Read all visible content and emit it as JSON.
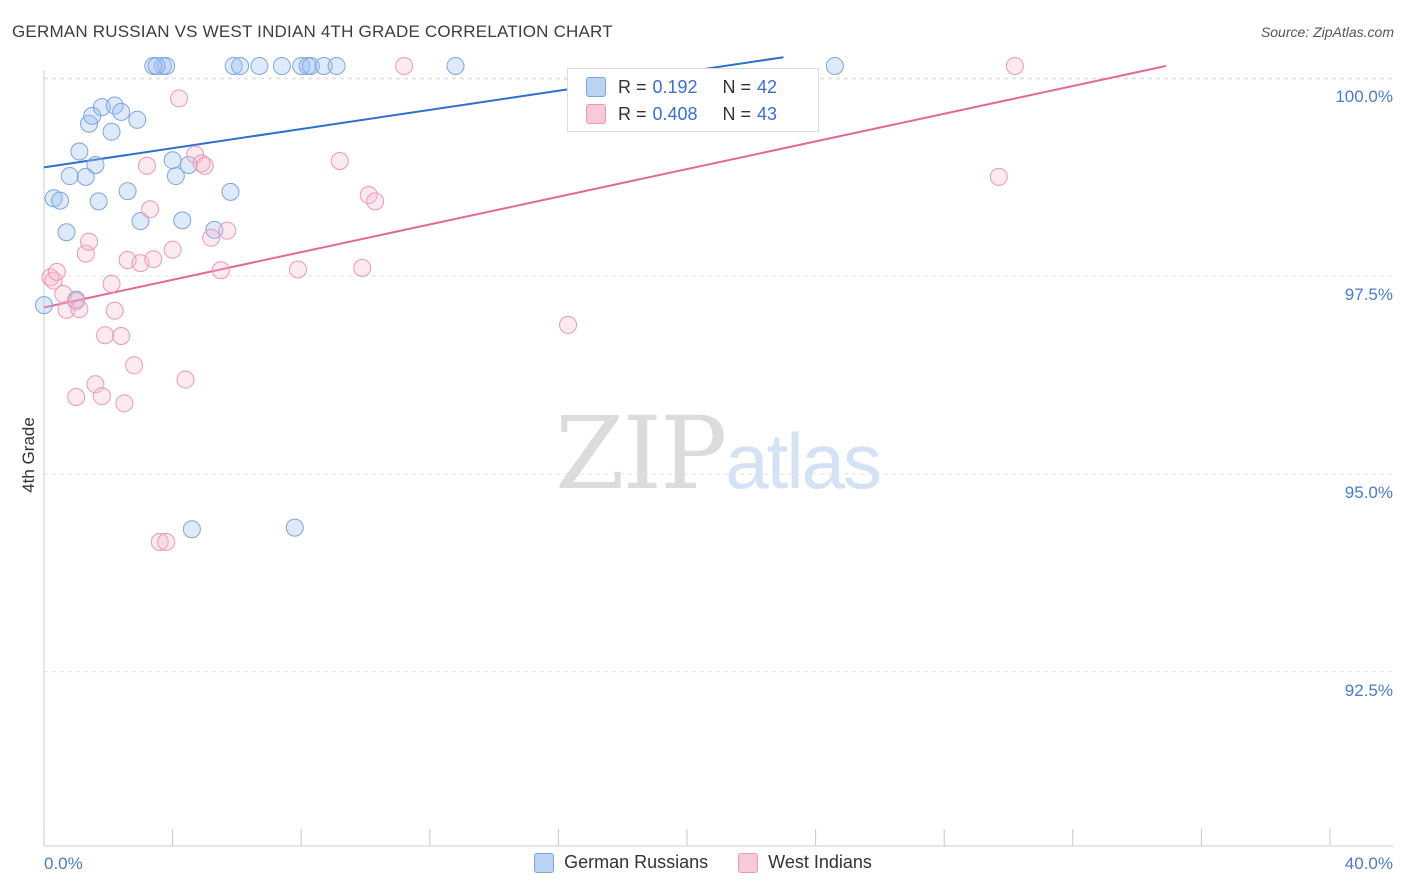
{
  "title": "GERMAN RUSSIAN VS WEST INDIAN 4TH GRADE CORRELATION CHART",
  "source": "Source: ZipAtlas.com",
  "watermark": {
    "zip": "ZIP",
    "atlas": "atlas"
  },
  "legend": {
    "r_label": "R =",
    "n_label": "N =",
    "rows": [
      {
        "r": "0.192",
        "n": "42"
      },
      {
        "r": "0.408",
        "n": "43"
      }
    ]
  },
  "bottom_legend": [
    "German Russians",
    "West Indians"
  ],
  "chart_data": {
    "type": "scatter",
    "title": "GERMAN RUSSIAN VS WEST INDIAN 4TH GRADE CORRELATION CHART",
    "xlabel": "",
    "ylabel": "4th Grade",
    "xlim": [
      0,
      40
    ],
    "ylim": [
      90.3,
      100.2
    ],
    "x_tick_labels": [
      "0.0%",
      "40.0%"
    ],
    "y_ticks": [
      100.0,
      97.5,
      95.0,
      92.5
    ],
    "y_tick_labels": [
      "100.0%",
      "97.5%",
      "95.0%",
      "92.5%"
    ],
    "colors": {
      "German Russians": "#6f9fe0",
      "West Indians": "#ef8fb0"
    },
    "series": [
      {
        "name": "German Russians",
        "r": 0.192,
        "n": 42,
        "trend": {
          "x": [
            0,
            23
          ],
          "y": [
            98.87,
            100.26
          ]
        },
        "points": [
          [
            0.0,
            97.13
          ],
          [
            0.3,
            98.48
          ],
          [
            0.5,
            98.45
          ],
          [
            0.7,
            98.05
          ],
          [
            0.8,
            98.76
          ],
          [
            1.0,
            97.2
          ],
          [
            1.1,
            99.07
          ],
          [
            1.3,
            98.75
          ],
          [
            1.4,
            99.42
          ],
          [
            1.5,
            99.52
          ],
          [
            1.6,
            98.9
          ],
          [
            1.7,
            98.44
          ],
          [
            1.8,
            99.63
          ],
          [
            2.1,
            99.32
          ],
          [
            2.2,
            99.65
          ],
          [
            2.4,
            99.57
          ],
          [
            2.6,
            98.57
          ],
          [
            2.9,
            99.47
          ],
          [
            3.0,
            98.19
          ],
          [
            3.7,
            100.15
          ],
          [
            3.8,
            100.15
          ],
          [
            3.4,
            100.15
          ],
          [
            3.5,
            100.15
          ],
          [
            4.1,
            98.76
          ],
          [
            4.3,
            98.2
          ],
          [
            4.0,
            98.96
          ],
          [
            4.5,
            98.9
          ],
          [
            4.6,
            94.3
          ],
          [
            5.3,
            98.08
          ],
          [
            5.8,
            98.56
          ],
          [
            5.9,
            100.15
          ],
          [
            6.1,
            100.15
          ],
          [
            6.7,
            100.15
          ],
          [
            7.4,
            100.15
          ],
          [
            8.0,
            100.15
          ],
          [
            8.2,
            100.15
          ],
          [
            8.3,
            100.15
          ],
          [
            8.7,
            100.15
          ],
          [
            9.1,
            100.15
          ],
          [
            7.8,
            94.32
          ],
          [
            12.8,
            100.15
          ],
          [
            24.6,
            100.15
          ]
        ]
      },
      {
        "name": "West Indians",
        "r": 0.408,
        "n": 43,
        "trend": {
          "x": [
            0,
            34.9
          ],
          "y": [
            97.1,
            100.15
          ]
        },
        "points": [
          [
            0.2,
            97.48
          ],
          [
            0.3,
            97.44
          ],
          [
            0.4,
            97.55
          ],
          [
            0.6,
            97.27
          ],
          [
            0.7,
            97.07
          ],
          [
            1.0,
            97.18
          ],
          [
            1.1,
            97.08
          ],
          [
            1.0,
            95.97
          ],
          [
            1.3,
            97.78
          ],
          [
            1.4,
            97.93
          ],
          [
            1.6,
            96.13
          ],
          [
            1.8,
            95.98
          ],
          [
            1.9,
            96.75
          ],
          [
            2.1,
            97.4
          ],
          [
            2.2,
            97.06
          ],
          [
            2.4,
            96.74
          ],
          [
            2.5,
            95.89
          ],
          [
            2.6,
            97.7
          ],
          [
            2.8,
            96.37
          ],
          [
            3.0,
            97.66
          ],
          [
            3.2,
            98.89
          ],
          [
            3.3,
            98.34
          ],
          [
            3.4,
            97.71
          ],
          [
            3.6,
            94.14
          ],
          [
            3.8,
            94.14
          ],
          [
            4.0,
            97.83
          ],
          [
            4.2,
            99.74
          ],
          [
            4.4,
            96.19
          ],
          [
            4.7,
            99.03
          ],
          [
            4.9,
            98.92
          ],
          [
            5.0,
            98.89
          ],
          [
            5.2,
            97.98
          ],
          [
            5.5,
            97.57
          ],
          [
            5.7,
            98.07
          ],
          [
            7.9,
            97.58
          ],
          [
            9.2,
            98.95
          ],
          [
            9.9,
            97.6
          ],
          [
            10.1,
            98.52
          ],
          [
            10.3,
            98.44
          ],
          [
            11.2,
            100.15
          ],
          [
            16.3,
            96.88
          ],
          [
            29.7,
            98.75
          ],
          [
            30.2,
            100.15
          ]
        ]
      }
    ]
  }
}
